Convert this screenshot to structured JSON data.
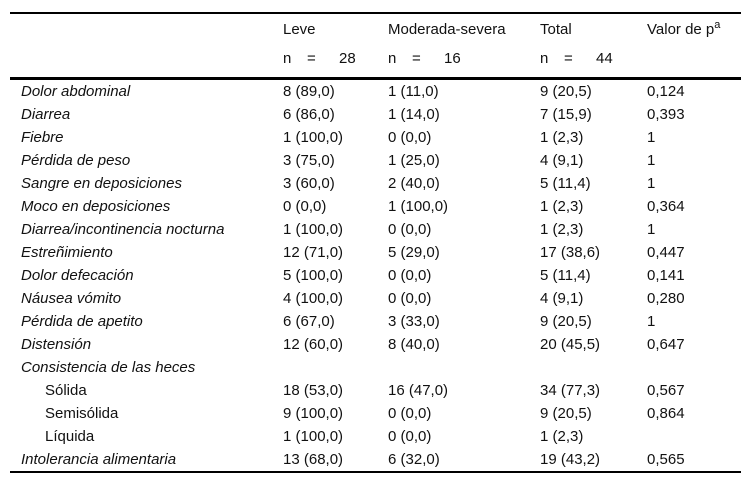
{
  "table": {
    "header": {
      "leve": {
        "label": "Leve",
        "n_label": "n",
        "eq": "=",
        "n": "28"
      },
      "mod": {
        "label": "Moderada-severa",
        "n_label": "n",
        "eq": "=",
        "n": "16"
      },
      "total": {
        "label": "Total",
        "n_label": "n",
        "eq": "=",
        "n": "44"
      },
      "pvalue": {
        "label": "Valor de p",
        "superscript": "a"
      }
    },
    "rows": [
      {
        "label": "Dolor abdominal",
        "leve": "8 (89,0)",
        "moderada_severa": "1 (11,0)",
        "total": "9 (20,5)",
        "p": "0,124",
        "indent": false
      },
      {
        "label": "Diarrea",
        "leve": "6 (86,0)",
        "moderada_severa": "1 (14,0)",
        "total": "7 (15,9)",
        "p": "0,393",
        "indent": false
      },
      {
        "label": "Fiebre",
        "leve": "1 (100,0)",
        "moderada_severa": "0 (0,0)",
        "total": "1 (2,3)",
        "p": "1",
        "indent": false
      },
      {
        "label": "Pérdida de peso",
        "leve": "3 (75,0)",
        "moderada_severa": "1 (25,0)",
        "total": "4 (9,1)",
        "p": "1",
        "indent": false
      },
      {
        "label": "Sangre en deposiciones",
        "leve": "3 (60,0)",
        "moderada_severa": "2 (40,0)",
        "total": "5 (11,4)",
        "p": "1",
        "indent": false
      },
      {
        "label": "Moco en deposiciones",
        "leve": "0 (0,0)",
        "moderada_severa": "1 (100,0)",
        "total": "1 (2,3)",
        "p": "0,364",
        "indent": false
      },
      {
        "label": "Diarrea/incontinencia nocturna",
        "leve": "1 (100,0)",
        "moderada_severa": "0 (0,0)",
        "total": "1 (2,3)",
        "p": "1",
        "indent": false
      },
      {
        "label": "Estreñimiento",
        "leve": "12 (71,0)",
        "moderada_severa": "5 (29,0)",
        "total": "17 (38,6)",
        "p": "0,447",
        "indent": false
      },
      {
        "label": "Dolor defecación",
        "leve": "5 (100,0)",
        "moderada_severa": "0 (0,0)",
        "total": "5 (11,4)",
        "p": "0,141",
        "indent": false
      },
      {
        "label": "Náusea vómito",
        "leve": "4 (100,0)",
        "moderada_severa": "0 (0,0)",
        "total": "4 (9,1)",
        "p": "0,280",
        "indent": false
      },
      {
        "label": "Pérdida de apetito",
        "leve": "6 (67,0)",
        "moderada_severa": "3 (33,0)",
        "total": "9 (20,5)",
        "p": "1",
        "indent": false
      },
      {
        "label": "Distensión",
        "leve": "12 (60,0)",
        "moderada_severa": "8 (40,0)",
        "total": "20 (45,5)",
        "p": "0,647",
        "indent": false
      },
      {
        "label": "Consistencia de las heces",
        "leve": "",
        "moderada_severa": "",
        "total": "",
        "p": "",
        "indent": false
      },
      {
        "label": "Sólida",
        "leve": "18 (53,0)",
        "moderada_severa": "16 (47,0)",
        "total": "34 (77,3)",
        "p": "0,567",
        "indent": true
      },
      {
        "label": "Semisólida",
        "leve": "9 (100,0)",
        "moderada_severa": "0 (0,0)",
        "total": "9 (20,5)",
        "p": "0,864",
        "indent": true
      },
      {
        "label": "Líquida",
        "leve": "1 (100,0)",
        "moderada_severa": "0 (0,0)",
        "total": "1 (2,3)",
        "p": "",
        "indent": true
      },
      {
        "label": "Intolerancia alimentaria",
        "leve": "13 (68,0)",
        "moderada_severa": "6 (32,0)",
        "total": "19 (43,2)",
        "p": "0,565",
        "indent": false
      }
    ]
  }
}
